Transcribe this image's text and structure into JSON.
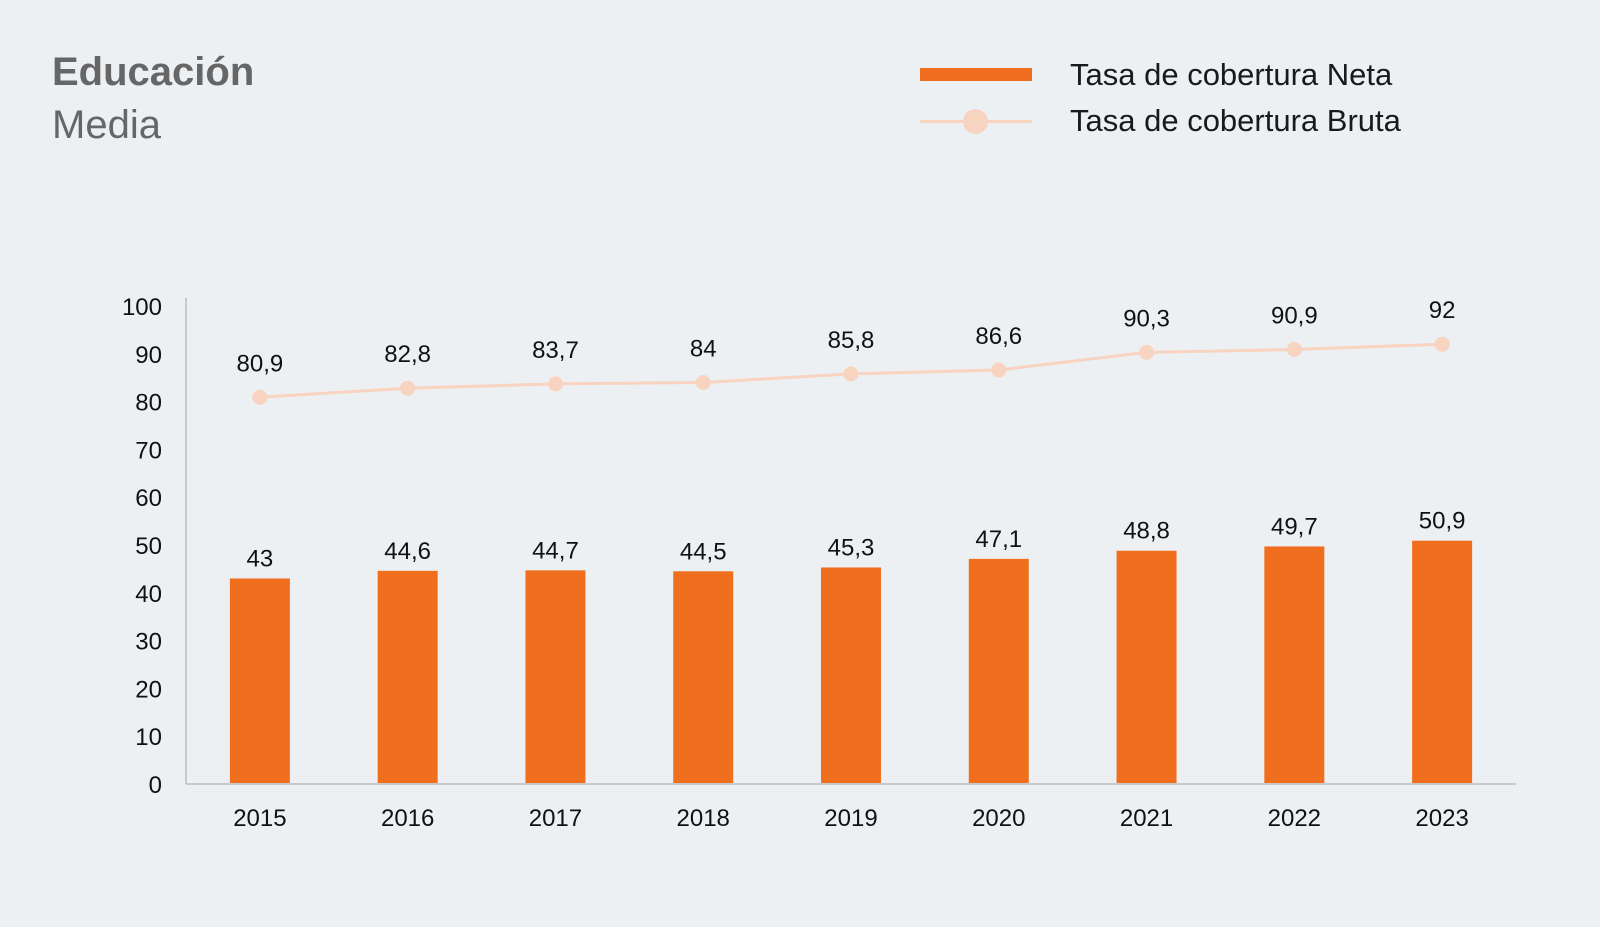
{
  "header": {
    "title": "Educación",
    "subtitle": "Media"
  },
  "legend": {
    "neta_label": "Tasa de cobertura Neta",
    "bruta_label": "Tasa de cobertura Bruta"
  },
  "colors": {
    "neta": "#ef6f1f",
    "bruta": "#f8d3c0",
    "axis": "#c9c9c9",
    "background": "#edf0f3"
  },
  "chart_data": {
    "type": "bar",
    "categories": [
      "2015",
      "2016",
      "2017",
      "2018",
      "2019",
      "2020",
      "2021",
      "2022",
      "2023"
    ],
    "series": [
      {
        "name": "Tasa de cobertura Neta",
        "type": "bar",
        "values": [
          43,
          44.6,
          44.7,
          44.5,
          45.3,
          47.1,
          48.8,
          49.7,
          50.9
        ],
        "labels": [
          "43",
          "44,6",
          "44,7",
          "44,5",
          "45,3",
          "47,1",
          "48,8",
          "49,7",
          "50,9"
        ]
      },
      {
        "name": "Tasa de cobertura Bruta",
        "type": "line",
        "values": [
          80.9,
          82.8,
          83.7,
          84,
          85.8,
          86.6,
          90.3,
          90.9,
          92
        ],
        "labels": [
          "80,9",
          "82,8",
          "83,7",
          "84",
          "85,8",
          "86,6",
          "90,3",
          "90,9",
          "92"
        ]
      }
    ],
    "ylim": [
      0,
      100
    ],
    "yticks": [
      "0",
      "10",
      "20",
      "30",
      "40",
      "50",
      "60",
      "70",
      "80",
      "90",
      "100"
    ],
    "xlabel": "",
    "ylabel": "",
    "grid": false,
    "legend_position": "top-right"
  }
}
